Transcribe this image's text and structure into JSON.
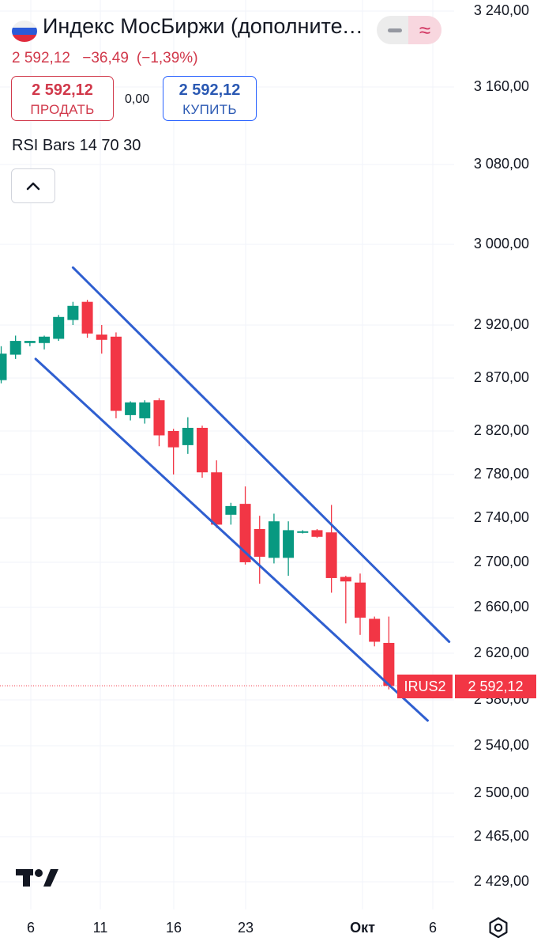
{
  "header": {
    "title": "Индекс МосБиржи (дополнительная сессия)",
    "flag": "russia-flag-icon",
    "price": "2 592,12",
    "change": "−36,49",
    "change_pct": "(−1,39%)"
  },
  "trade": {
    "sell_value": "2 592,12",
    "sell_label": "ПРОДАТЬ",
    "spread": "0,00",
    "buy_value": "2 592,12",
    "buy_label": "КУПИТЬ"
  },
  "indicator": {
    "label": "RSI Bars 14 70 30"
  },
  "toolbar": {
    "collapse_icon": "chevron-up-icon",
    "minus_icon": "minus-icon",
    "wave_icon": "wave-icon",
    "wave_glyph": "≈"
  },
  "y_axis": {
    "labels": [
      "3 240,00",
      "3 160,00",
      "3 080,00",
      "3 000,00",
      "2 920,00",
      "2 870,00",
      "2 820,00",
      "2 780,00",
      "2 740,00",
      "2 700,00",
      "2 660,00",
      "2 620,00",
      "2 580,00",
      "2 540,00",
      "2 500,00",
      "2 465,00",
      "2 429,00"
    ]
  },
  "x_axis": {
    "labels": [
      "6",
      "11",
      "16",
      "23",
      "Окт",
      "6"
    ]
  },
  "last_price_tag": {
    "ticker": "IRUS2",
    "price": "2 592,12"
  },
  "colors": {
    "up": "#089981",
    "down": "#f23645",
    "channel": "#2f5fd0",
    "grid": "#f0f3fa"
  },
  "chart_data": {
    "type": "candlestick",
    "ylim": [
      2429,
      3240
    ],
    "last_price": 2592.12,
    "candles": [
      {
        "o": 2868,
        "h": 2900,
        "l": 2865,
        "c": 2893
      },
      {
        "o": 2892,
        "h": 2910,
        "l": 2888,
        "c": 2905
      },
      {
        "o": 2903,
        "h": 2905,
        "l": 2900,
        "c": 2905
      },
      {
        "o": 2903,
        "h": 2910,
        "l": 2897,
        "c": 2909
      },
      {
        "o": 2907,
        "h": 2930,
        "l": 2905,
        "c": 2928
      },
      {
        "o": 2925,
        "h": 2943,
        "l": 2920,
        "c": 2939
      },
      {
        "o": 2943,
        "h": 2945,
        "l": 2908,
        "c": 2912
      },
      {
        "o": 2911,
        "h": 2920,
        "l": 2893,
        "c": 2906
      },
      {
        "o": 2909,
        "h": 2913,
        "l": 2832,
        "c": 2839
      },
      {
        "o": 2835,
        "h": 2848,
        "l": 2830,
        "c": 2847
      },
      {
        "o": 2832,
        "h": 2849,
        "l": 2827,
        "c": 2847
      },
      {
        "o": 2849,
        "h": 2851,
        "l": 2806,
        "c": 2816
      },
      {
        "o": 2820,
        "h": 2822,
        "l": 2780,
        "c": 2805
      },
      {
        "o": 2807,
        "h": 2833,
        "l": 2799,
        "c": 2823
      },
      {
        "o": 2823,
        "h": 2825,
        "l": 2777,
        "c": 2782
      },
      {
        "o": 2782,
        "h": 2793,
        "l": 2731,
        "c": 2734
      },
      {
        "o": 2743,
        "h": 2754,
        "l": 2734,
        "c": 2751
      },
      {
        "o": 2753,
        "h": 2769,
        "l": 2698,
        "c": 2700
      },
      {
        "o": 2730,
        "h": 2742,
        "l": 2681,
        "c": 2705
      },
      {
        "o": 2704,
        "h": 2744,
        "l": 2699,
        "c": 2737
      },
      {
        "o": 2704,
        "h": 2737,
        "l": 2688,
        "c": 2729
      },
      {
        "o": 2727,
        "h": 2729,
        "l": 2726,
        "c": 2728
      },
      {
        "o": 2729,
        "h": 2730,
        "l": 2722,
        "c": 2723
      },
      {
        "o": 2727,
        "h": 2752,
        "l": 2673,
        "c": 2686
      },
      {
        "o": 2687,
        "h": 2688,
        "l": 2646,
        "c": 2683
      },
      {
        "o": 2682,
        "h": 2690,
        "l": 2636,
        "c": 2651
      },
      {
        "o": 2650,
        "h": 2652,
        "l": 2626,
        "c": 2630
      },
      {
        "o": 2629,
        "h": 2652,
        "l": 2589,
        "c": 2592
      }
    ],
    "channel_upper": [
      {
        "i": 5.0,
        "y": 2977
      },
      {
        "i": 31.2,
        "y": 2630
      }
    ],
    "channel_lower": [
      {
        "i": 2.4,
        "y": 2888
      },
      {
        "i": 29.7,
        "y": 2562
      }
    ]
  }
}
